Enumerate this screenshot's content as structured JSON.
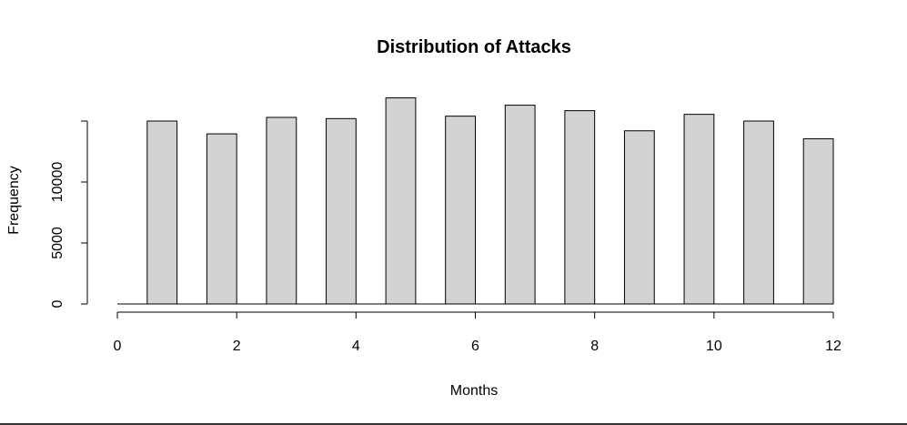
{
  "chart_data": {
    "type": "bar",
    "title": "Distribution of Attacks",
    "xlabel": "Months",
    "ylabel": "Frequency",
    "xlim": [
      0,
      12
    ],
    "ylim": [
      0,
      15000
    ],
    "x_ticks": [
      "0",
      "2",
      "4",
      "6",
      "8",
      "10",
      "12"
    ],
    "y_ticks": [
      "0",
      "5000",
      "10000"
    ],
    "bars": [
      {
        "x0": 0.5,
        "x1": 1.0,
        "value": 15000
      },
      {
        "x0": 1.5,
        "x1": 2.0,
        "value": 13950
      },
      {
        "x0": 2.5,
        "x1": 3.0,
        "value": 15300
      },
      {
        "x0": 3.5,
        "x1": 4.0,
        "value": 15200
      },
      {
        "x0": 4.5,
        "x1": 5.0,
        "value": 16900
      },
      {
        "x0": 5.5,
        "x1": 6.0,
        "value": 15400
      },
      {
        "x0": 6.5,
        "x1": 7.0,
        "value": 16300
      },
      {
        "x0": 7.5,
        "x1": 8.0,
        "value": 15850
      },
      {
        "x0": 8.5,
        "x1": 9.0,
        "value": 14200
      },
      {
        "x0": 9.5,
        "x1": 10.0,
        "value": 15550
      },
      {
        "x0": 10.5,
        "x1": 11.0,
        "value": 15000
      },
      {
        "x0": 11.5,
        "x1": 12.0,
        "value": 13550
      }
    ],
    "bar_fill": "#d3d3d3",
    "bar_stroke": "#000000",
    "grid": false,
    "legend": "none"
  }
}
